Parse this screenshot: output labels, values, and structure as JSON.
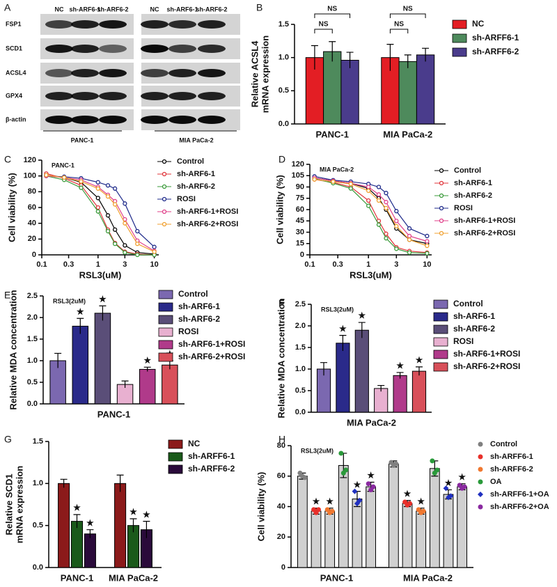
{
  "blot": {
    "panel": "A",
    "lanes": [
      "NC",
      "sh-ARF6-1",
      "sh-ARF6-2",
      "NC",
      "sh-ARF6-1",
      "sh-ARF6-2"
    ],
    "proteins": [
      "FSP1",
      "SCD1",
      "ACSL4",
      "GPX4",
      "β-actin"
    ],
    "groups": [
      "PANC-1",
      "MIA PaCa-2"
    ]
  },
  "chart_data": [
    {
      "type": "bar",
      "panel": "B",
      "ylabel": [
        "Relative ACSL4",
        "mRNA expression"
      ],
      "categories": [
        "PANC-1",
        "MIA PaCa-2"
      ],
      "series": [
        {
          "name": "NC",
          "color": "#e31e24",
          "values": [
            1.0,
            1.0
          ],
          "errors": [
            0.18,
            0.2
          ]
        },
        {
          "name": "sh-ARFF6-1",
          "color": "#4e8a5c",
          "values": [
            1.09,
            0.94
          ],
          "errors": [
            0.15,
            0.1
          ]
        },
        {
          "name": "sh-ARFF6-2",
          "color": "#4a3c8c",
          "values": [
            0.96,
            1.04
          ],
          "errors": [
            0.12,
            0.1
          ]
        }
      ],
      "annotations": [
        "NS",
        "NS",
        "NS",
        "NS"
      ],
      "ylim": [
        0,
        1.5
      ],
      "yticks": [
        {
          "value": 0,
          "label": "0.0"
        },
        {
          "value": 0.5,
          "label": "0.5"
        },
        {
          "value": 1,
          "label": "1.0"
        },
        {
          "value": 1.5,
          "label": "1.5"
        }
      ]
    },
    {
      "type": "line",
      "panel": "C",
      "subtitle": "PANC-1",
      "xlabel": "RSL3(uM)",
      "ylabel": "Cell viability (%)",
      "xscale": "log",
      "x": [
        0.12,
        0.25,
        0.5,
        1,
        1.5,
        2,
        3,
        5,
        10
      ],
      "series": [
        {
          "name": "Control",
          "color": "#000000",
          "values": [
            101,
            98,
            92,
            72,
            50,
            32,
            12,
            3,
            1
          ]
        },
        {
          "name": "sh-ARF6-1",
          "color": "#e0343a",
          "values": [
            103,
            97,
            88,
            60,
            32,
            15,
            4,
            1,
            0
          ]
        },
        {
          "name": "sh-ARF6-2",
          "color": "#3a9a3a",
          "values": [
            100,
            95,
            85,
            55,
            30,
            14,
            3,
            0,
            0
          ]
        },
        {
          "name": "ROSI",
          "color": "#1e2a8a",
          "values": [
            100,
            99,
            97,
            92,
            88,
            84,
            65,
            30,
            10
          ]
        },
        {
          "name": "sh-ARF6-1+ROSI",
          "color": "#e0408a",
          "values": [
            100,
            98,
            95,
            86,
            76,
            68,
            45,
            18,
            5
          ]
        },
        {
          "name": "sh-ARF6-2+ROSI",
          "color": "#f0a030",
          "values": [
            101,
            98,
            93,
            84,
            74,
            64,
            40,
            14,
            4
          ]
        }
      ],
      "xlim": [
        0.1,
        12
      ],
      "xticks": [
        0.1,
        0.3,
        1,
        3,
        10
      ],
      "ylim": [
        0,
        120
      ],
      "yticks": [
        0,
        20,
        40,
        60,
        80,
        100,
        120
      ]
    },
    {
      "type": "line",
      "panel": "D",
      "subtitle": "MIA PaCa-2",
      "xlabel": "RSL3(uM)",
      "ylabel": "Cell viability (%)",
      "xscale": "log",
      "x": [
        0.12,
        0.25,
        0.5,
        1,
        1.5,
        2,
        3,
        5,
        10
      ],
      "series": [
        {
          "name": "Control",
          "color": "#000000",
          "values": [
            102,
            98,
            95,
            88,
            75,
            60,
            35,
            20,
            15
          ]
        },
        {
          "name": "sh-ARF6-1",
          "color": "#e0343a",
          "values": [
            100,
            96,
            90,
            72,
            45,
            28,
            10,
            5,
            3
          ]
        },
        {
          "name": "sh-ARF6-2",
          "color": "#3a9a3a",
          "values": [
            101,
            95,
            88,
            65,
            40,
            22,
            8,
            3,
            2
          ]
        },
        {
          "name": "ROSI",
          "color": "#1e2a8a",
          "values": [
            104,
            99,
            97,
            94,
            90,
            82,
            58,
            35,
            25
          ]
        },
        {
          "name": "sh-ARF6-1+ROSI",
          "color": "#e0408a",
          "values": [
            102,
            98,
            95,
            90,
            80,
            70,
            45,
            25,
            18
          ]
        },
        {
          "name": "sh-ARF6-2+ROSI",
          "color": "#f0a030",
          "values": [
            100,
            97,
            94,
            85,
            72,
            62,
            38,
            20,
            12
          ]
        }
      ],
      "xlim": [
        0.1,
        12
      ],
      "xticks": [
        0.1,
        0.3,
        1,
        3,
        10
      ],
      "ylim": [
        0,
        120
      ],
      "yticks": [
        0,
        15,
        30,
        45,
        60,
        75,
        90,
        105,
        120
      ]
    },
    {
      "type": "bar",
      "panel": "E",
      "subtitle": "RSL3(2uM)",
      "ylabel": "Relative MDA concentration",
      "categories": [
        "PANC-1"
      ],
      "series": [
        {
          "name": "Control",
          "color": "#7b68b0",
          "values": [
            1.0
          ],
          "errors": [
            0.17
          ]
        },
        {
          "name": "sh-ARF6-1",
          "color": "#2a2a8a",
          "values": [
            1.8
          ],
          "errors": [
            0.18
          ],
          "labels": [
            "★"
          ]
        },
        {
          "name": "sh-ARF6-2",
          "color": "#5a4e78",
          "values": [
            2.1
          ],
          "errors": [
            0.17
          ],
          "labels": [
            "★"
          ]
        },
        {
          "name": "ROSI",
          "color": "#e8b0d0",
          "values": [
            0.45
          ],
          "errors": [
            0.08
          ]
        },
        {
          "name": "sh-ARF6-1+ROSI",
          "color": "#b03a8a",
          "values": [
            0.8
          ],
          "errors": [
            0.05
          ],
          "labels": [
            "★"
          ]
        },
        {
          "name": "sh-ARF6-2+ROSI",
          "color": "#d8505a",
          "values": [
            0.9
          ],
          "errors": [
            0.1
          ],
          "labels": [
            "★"
          ]
        }
      ],
      "ylim": [
        0,
        2.5
      ],
      "yticks": [
        {
          "value": 0,
          "label": "0.0"
        },
        {
          "value": 0.5,
          "label": "0.5"
        },
        {
          "value": 1,
          "label": "1.0"
        },
        {
          "value": 1.5,
          "label": "1.5"
        },
        {
          "value": 2,
          "label": "2.0"
        },
        {
          "value": 2.5,
          "label": "2.5"
        }
      ]
    },
    {
      "type": "bar",
      "panel": "F",
      "subtitle": "RSL3(2uM)",
      "ylabel": "Relative MDA concentration",
      "categories": [
        "MIA PaCa-2"
      ],
      "series": [
        {
          "name": "Control",
          "color": "#7b68b0",
          "values": [
            1.0
          ],
          "errors": [
            0.15
          ]
        },
        {
          "name": "sh-ARF6-1",
          "color": "#2a2a8a",
          "values": [
            1.6
          ],
          "errors": [
            0.18
          ],
          "labels": [
            "★"
          ]
        },
        {
          "name": "sh-ARF6-2",
          "color": "#5a4e78",
          "values": [
            1.9
          ],
          "errors": [
            0.18
          ],
          "labels": [
            "★"
          ]
        },
        {
          "name": "ROSI",
          "color": "#e8b0d0",
          "values": [
            0.55
          ],
          "errors": [
            0.07
          ]
        },
        {
          "name": "sh-ARF6-1+ROSI",
          "color": "#b03a8a",
          "values": [
            0.85
          ],
          "errors": [
            0.07
          ],
          "labels": [
            "★"
          ]
        },
        {
          "name": "sh-ARF6-2+ROSI",
          "color": "#d8505a",
          "values": [
            0.95
          ],
          "errors": [
            0.1
          ],
          "labels": [
            "★"
          ]
        }
      ],
      "ylim": [
        0,
        2.5
      ],
      "yticks": [
        {
          "value": 0,
          "label": "0.0"
        },
        {
          "value": 0.5,
          "label": "0.5"
        },
        {
          "value": 1,
          "label": "1.0"
        },
        {
          "value": 1.5,
          "label": "1.5"
        },
        {
          "value": 2,
          "label": "2.0"
        },
        {
          "value": 2.5,
          "label": "2.5"
        }
      ]
    },
    {
      "type": "bar",
      "panel": "G",
      "ylabel": [
        "Relative SCD1",
        "mRNA expression"
      ],
      "categories": [
        "PANC-1",
        "MIA PaCa-2"
      ],
      "series": [
        {
          "name": "NC",
          "color": "#8b1a1a",
          "values": [
            1.0,
            1.0
          ],
          "errors": [
            0.05,
            0.1
          ]
        },
        {
          "name": "sh-ARFF6-1",
          "color": "#1a5a1a",
          "values": [
            0.55,
            0.5
          ],
          "errors": [
            0.08,
            0.08
          ],
          "labels": [
            "★",
            "★"
          ]
        },
        {
          "name": "sh-ARFF6-2",
          "color": "#2a0a3a",
          "values": [
            0.4,
            0.45
          ],
          "errors": [
            0.05,
            0.1
          ],
          "labels": [
            "★",
            "★"
          ]
        }
      ],
      "ylim": [
        0,
        1.5
      ],
      "yticks": [
        {
          "value": 0,
          "label": "0.0"
        },
        {
          "value": 0.5,
          "label": "0.5"
        },
        {
          "value": 1,
          "label": "1.0"
        },
        {
          "value": 1.5,
          "label": "1.5"
        }
      ]
    },
    {
      "type": "bar",
      "panel": "H",
      "subtitle": "RSL3(2uM)",
      "ylabel": "Cell viability (%)",
      "categories": [
        "PANC-1",
        "MIA PaCa-2"
      ],
      "bar_color": "#d0d0d0",
      "series": [
        {
          "name": "Control",
          "color": "#808080",
          "values": [
            60,
            68
          ],
          "errors": [
            2,
            2
          ],
          "points": [
            [
              62,
              60,
              59
            ],
            [
              69,
              67,
              68
            ]
          ]
        },
        {
          "name": "sh-ARFF6-1",
          "color": "#e8302a",
          "values": [
            37,
            42
          ],
          "errors": [
            2,
            2
          ],
          "points": [
            [
              38,
              36,
              38
            ],
            [
              43,
              41,
              42
            ]
          ],
          "labels": [
            "★",
            "★"
          ]
        },
        {
          "name": "sh-ARFF6-2",
          "color": "#f07830",
          "values": [
            37,
            37
          ],
          "errors": [
            2,
            2
          ],
          "points": [
            [
              38,
              36,
              37
            ],
            [
              38,
              36,
              37
            ]
          ],
          "labels": [
            "★",
            "★"
          ]
        },
        {
          "name": "OA",
          "color": "#2a9a3a",
          "values": [
            67,
            65
          ],
          "errors": [
            8,
            5
          ],
          "points": [
            [
              75,
              62,
              64
            ],
            [
              70,
              62,
              64
            ]
          ]
        },
        {
          "name": "sh-ARFF6-1+OA",
          "color": "#2030c0",
          "values": [
            45,
            48
          ],
          "errors": [
            5,
            3
          ],
          "points": [
            [
              50,
              42,
              44
            ],
            [
              52,
              46,
              47
            ]
          ],
          "labels": [
            "★",
            "★"
          ],
          "marker": "diamond"
        },
        {
          "name": "sh-ARFF6-2+OA",
          "color": "#8a2aa0",
          "values": [
            53,
            53
          ],
          "errors": [
            3,
            2
          ],
          "points": [
            [
              55,
              51,
              53
            ],
            [
              54,
              52,
              53
            ]
          ],
          "labels": [
            "★",
            "★"
          ]
        }
      ],
      "ylim": [
        0,
        80
      ],
      "yticks": [
        0,
        20,
        40,
        60,
        80
      ]
    }
  ]
}
